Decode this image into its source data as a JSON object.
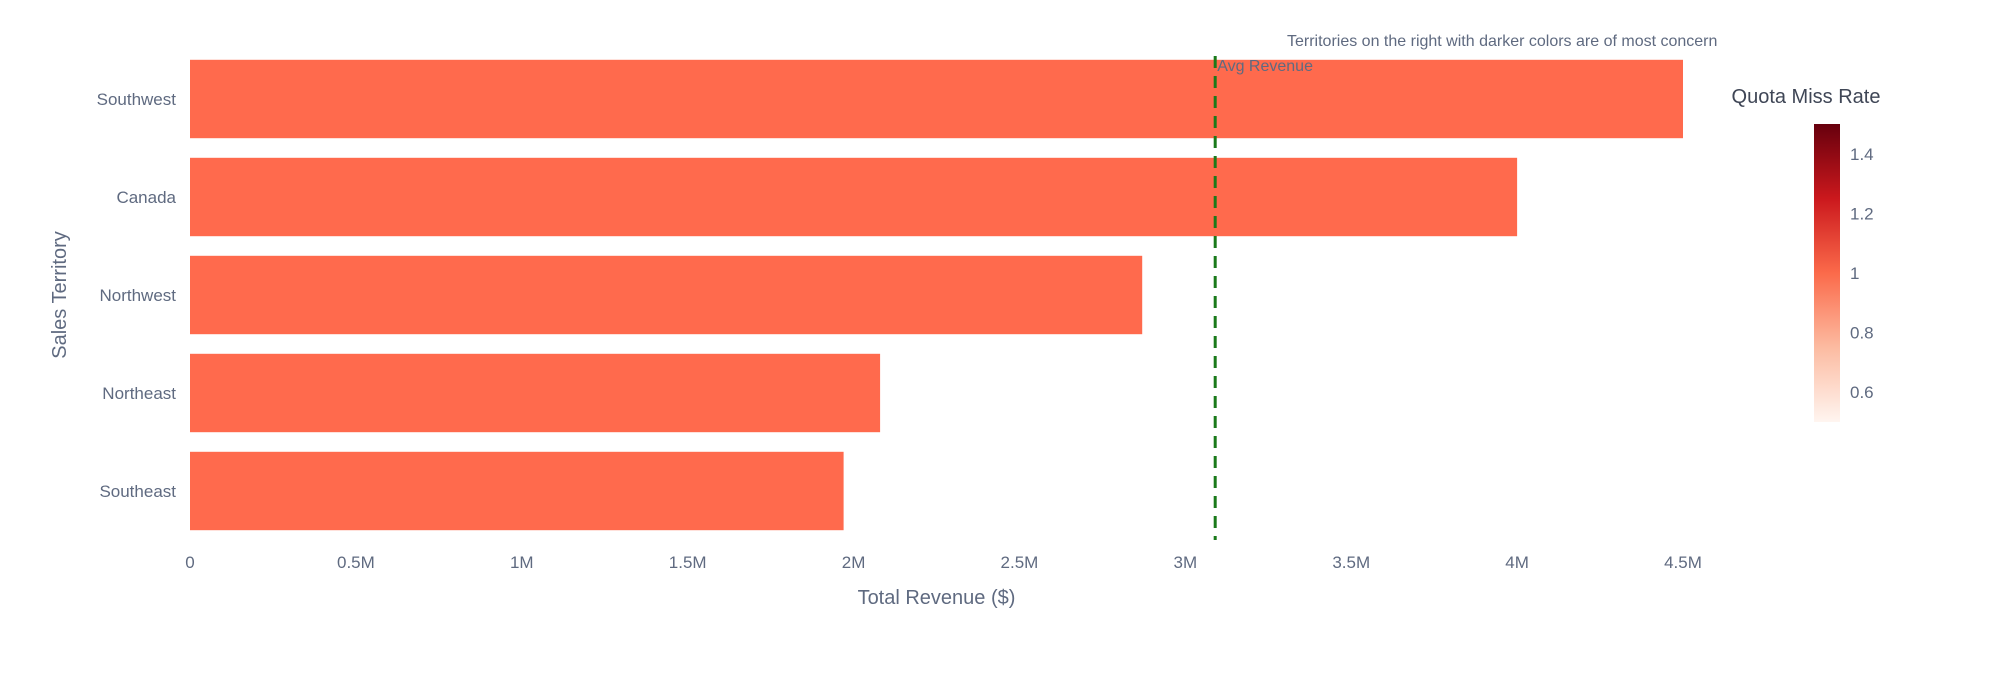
{
  "chart_data": {
    "type": "bar",
    "orientation": "horizontal",
    "categories": [
      "Southwest",
      "Canada",
      "Northwest",
      "Northeast",
      "Southeast"
    ],
    "values": [
      4500000,
      4000000,
      2870000,
      2080000,
      1970000
    ],
    "bar_color": "#ff6a4d",
    "xlabel": "Total Revenue ($)",
    "ylabel": "Sales Territory",
    "xlim": [
      0,
      4500000
    ],
    "x_ticks": [
      {
        "value": 0,
        "label": "0"
      },
      {
        "value": 500000,
        "label": "0.5M"
      },
      {
        "value": 1000000,
        "label": "1M"
      },
      {
        "value": 1500000,
        "label": "1.5M"
      },
      {
        "value": 2000000,
        "label": "2M"
      },
      {
        "value": 2500000,
        "label": "2.5M"
      },
      {
        "value": 3000000,
        "label": "3M"
      },
      {
        "value": 3500000,
        "label": "3.5M"
      },
      {
        "value": 4000000,
        "label": "4M"
      },
      {
        "value": 4500000,
        "label": "4.5M"
      }
    ],
    "grid": false,
    "reference_line": {
      "label": "Avg Revenue",
      "value": 3090000,
      "color": "#1a7a1a",
      "style": "dashed"
    },
    "annotation": "Territories on the right with darker colors are of most concern",
    "colorbar": {
      "title": "Quota Miss Rate",
      "range": [
        0.5,
        1.5
      ],
      "ticks": [
        {
          "value": 0.6,
          "label": "0.6"
        },
        {
          "value": 0.8,
          "label": "0.8"
        },
        {
          "value": 1.0,
          "label": "1"
        },
        {
          "value": 1.2,
          "label": "1.2"
        },
        {
          "value": 1.4,
          "label": "1.4"
        }
      ],
      "colors": [
        "#fff5f0",
        "#fcbba1",
        "#fb6a4a",
        "#cb181d",
        "#67000d"
      ]
    }
  }
}
